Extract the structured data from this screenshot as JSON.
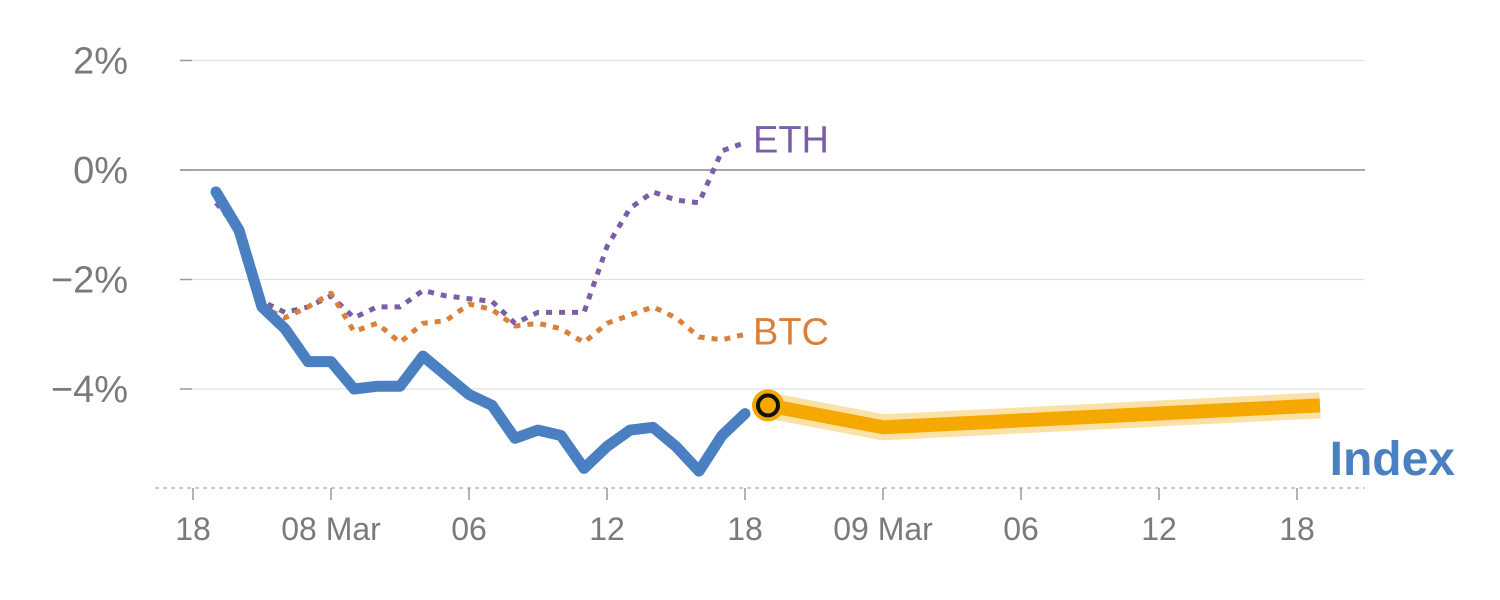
{
  "chart_data": {
    "type": "line",
    "y_unit": "%",
    "ylim": [
      -5.8,
      2.4
    ],
    "y_ticks": [
      2,
      0,
      -2,
      -4
    ],
    "y_tick_labels": [
      "2%",
      "0%",
      "−2%",
      "−4%"
    ],
    "x_ticks": [
      0,
      6,
      12,
      18,
      24,
      30,
      36,
      42,
      48
    ],
    "x_tick_labels": [
      "18",
      "08 Mar",
      "06",
      "12",
      "18",
      "09 Mar",
      "06",
      "12",
      "18"
    ],
    "xlim": [
      0,
      51
    ],
    "baseline": 0,
    "grid": true,
    "series": [
      {
        "name": "ETH",
        "label": "ETH",
        "color": "#7b5ea7",
        "style": "dotted",
        "x": [
          1,
          2,
          3,
          4,
          5,
          6,
          7,
          8,
          9,
          10,
          11,
          12,
          13,
          14,
          15,
          16,
          17,
          18,
          19,
          20,
          21,
          22,
          23,
          24
        ],
        "y": [
          -0.6,
          -1.1,
          -2.4,
          -2.6,
          -2.5,
          -2.3,
          -2.7,
          -2.5,
          -2.5,
          -2.2,
          -2.3,
          -2.35,
          -2.4,
          -2.8,
          -2.6,
          -2.6,
          -2.6,
          -1.4,
          -0.7,
          -0.4,
          -0.55,
          -0.6,
          0.35,
          0.5
        ]
      },
      {
        "name": "BTC",
        "label": "BTC",
        "color": "#d9813a",
        "style": "dotted",
        "x": [
          1,
          2,
          3,
          4,
          5,
          6,
          7,
          8,
          9,
          10,
          11,
          12,
          13,
          14,
          15,
          16,
          17,
          18,
          19,
          20,
          21,
          22,
          23,
          24
        ],
        "y": [
          -0.5,
          -1.2,
          -2.5,
          -2.7,
          -2.5,
          -2.25,
          -2.95,
          -2.8,
          -3.15,
          -2.8,
          -2.75,
          -2.45,
          -2.55,
          -2.85,
          -2.8,
          -2.9,
          -3.15,
          -2.8,
          -2.65,
          -2.5,
          -2.7,
          -3.05,
          -3.1,
          -3.0
        ]
      },
      {
        "name": "Index",
        "label": "Index",
        "color": "#4a7fc1",
        "style": "solid",
        "x": [
          1,
          2,
          3,
          4,
          5,
          6,
          7,
          8,
          9,
          10,
          11,
          12,
          13,
          14,
          15,
          16,
          17,
          18,
          19,
          20,
          21,
          22,
          23,
          24
        ],
        "y": [
          -0.4,
          -1.1,
          -2.5,
          -2.9,
          -3.5,
          -3.5,
          -4.0,
          -3.95,
          -3.95,
          -3.4,
          -3.75,
          -4.1,
          -4.3,
          -4.9,
          -4.75,
          -4.85,
          -5.45,
          -5.05,
          -4.75,
          -4.7,
          -5.05,
          -5.5,
          -4.85,
          -4.45
        ]
      },
      {
        "name": "Index forecast",
        "color": "#f5a800",
        "style": "band",
        "x": [
          25,
          30,
          49
        ],
        "y": [
          -4.3,
          -4.7,
          -4.3
        ]
      }
    ],
    "marker": {
      "x": 25,
      "y": -4.3,
      "fill": "#f5a800",
      "ring": "#111111"
    }
  }
}
